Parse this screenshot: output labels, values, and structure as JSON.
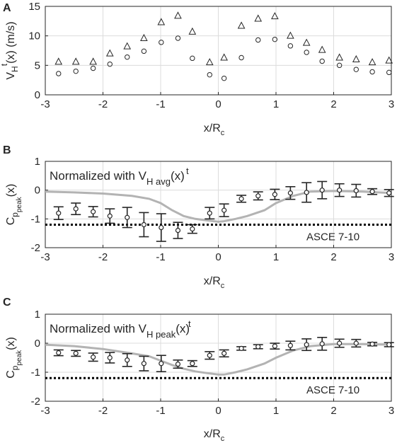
{
  "chart_data": [
    {
      "panel_letter": "A",
      "type": "scatter",
      "xlabel": "x/R",
      "xlabel_sub": "c",
      "ylabel_parts": [
        "V",
        "H",
        "t",
        "(x) (m/s)"
      ],
      "xlim": [
        -3,
        3
      ],
      "ylim": [
        0,
        15
      ],
      "xticks": [
        -3,
        -2,
        -1,
        0,
        1,
        2,
        3
      ],
      "yticks": [
        0,
        5,
        10,
        15
      ],
      "grid": true,
      "series": [
        {
          "marker": "triangle",
          "x": [
            -2.77,
            -2.47,
            -2.17,
            -1.88,
            -1.58,
            -1.29,
            -0.99,
            -0.7,
            -0.45,
            -0.15,
            0.1,
            0.4,
            0.69,
            0.98,
            1.25,
            1.53,
            1.8,
            2.1,
            2.39,
            2.67,
            2.96
          ],
          "y": [
            5.6,
            5.6,
            5.6,
            7.0,
            8.2,
            9.6,
            12.3,
            13.4,
            10.7,
            5.5,
            6.3,
            11.7,
            12.9,
            13.3,
            10.0,
            8.8,
            7.6,
            6.3,
            6.0,
            5.5,
            5.8
          ]
        },
        {
          "marker": "circle",
          "x": [
            -2.77,
            -2.47,
            -2.17,
            -1.88,
            -1.58,
            -1.29,
            -0.99,
            -0.7,
            -0.45,
            -0.15,
            0.1,
            0.4,
            0.69,
            0.98,
            1.25,
            1.53,
            1.8,
            2.1,
            2.39,
            2.67,
            2.96
          ],
          "y": [
            3.6,
            4.0,
            4.5,
            5.2,
            6.4,
            7.4,
            8.9,
            9.6,
            6.2,
            3.4,
            2.8,
            6.3,
            9.3,
            9.4,
            8.3,
            7.2,
            5.7,
            5.0,
            4.3,
            3.9,
            3.8
          ]
        }
      ]
    },
    {
      "panel_letter": "B",
      "type": "scatter",
      "xlabel": "x/R",
      "xlabel_sub": "c",
      "ylabel_parts": [
        "C",
        "p",
        "peak",
        "(x)"
      ],
      "xlim": [
        -3,
        3
      ],
      "ylim": [
        -2,
        1
      ],
      "xticks": [
        -3,
        -2,
        -1,
        0,
        1,
        2,
        3
      ],
      "yticks": [
        -2,
        -1,
        0,
        1
      ],
      "grid": true,
      "annotation_parts": [
        "Normalized with V",
        "H avg",
        "t",
        "(x)"
      ],
      "reference_label": "ASCE 7-10",
      "reference_y": -1.2,
      "points": {
        "x": [
          -2.77,
          -2.47,
          -2.17,
          -1.88,
          -1.58,
          -1.29,
          -0.99,
          -0.7,
          -0.45,
          -0.15,
          0.1,
          0.4,
          0.69,
          0.98,
          1.25,
          1.53,
          1.8,
          2.1,
          2.39,
          2.67,
          2.96
        ],
        "y": [
          -0.8,
          -0.65,
          -0.75,
          -0.9,
          -0.95,
          -1.2,
          -1.3,
          -1.4,
          -1.35,
          -0.8,
          -0.7,
          -0.3,
          -0.2,
          -0.15,
          -0.1,
          -0.08,
          0.0,
          0.0,
          -0.02,
          -0.05,
          -0.1
        ],
        "err": [
          0.22,
          0.2,
          0.18,
          0.25,
          0.35,
          0.42,
          0.48,
          0.28,
          0.15,
          0.2,
          0.22,
          0.12,
          0.14,
          0.18,
          0.22,
          0.34,
          0.3,
          0.22,
          0.22,
          0.1,
          0.12
        ]
      },
      "grey_line": {
        "x": [
          -3,
          -2.5,
          -2,
          -1.5,
          -1.2,
          -1,
          -0.8,
          -0.6,
          -0.4,
          -0.2,
          0,
          0.1,
          0.3,
          0.5,
          0.8,
          1.0,
          1.3,
          1.6,
          2.0,
          2.5,
          3
        ],
        "y": [
          -0.05,
          -0.08,
          -0.12,
          -0.2,
          -0.3,
          -0.45,
          -0.7,
          -0.9,
          -1.0,
          -1.05,
          -1.1,
          -1.08,
          -1.0,
          -0.9,
          -0.7,
          -0.45,
          -0.2,
          -0.05,
          -0.03,
          -0.05,
          -0.1
        ]
      }
    },
    {
      "panel_letter": "C",
      "type": "scatter",
      "xlabel": "x/R",
      "xlabel_sub": "c",
      "ylabel_parts": [
        "C",
        "p",
        "peak",
        "(x)"
      ],
      "xlim": [
        -3,
        3
      ],
      "ylim": [
        -2,
        1
      ],
      "xticks": [
        -3,
        -2,
        -1,
        0,
        1,
        2,
        3
      ],
      "yticks": [
        -2,
        -1,
        0,
        1
      ],
      "grid": true,
      "annotation_parts": [
        "Normalized with V",
        "H peak",
        "t",
        "(x)"
      ],
      "reference_label": "ASCE 7-10",
      "reference_y": -1.2,
      "points": {
        "x": [
          -2.77,
          -2.47,
          -2.17,
          -1.88,
          -1.58,
          -1.29,
          -0.99,
          -0.7,
          -0.45,
          -0.15,
          0.1,
          0.4,
          0.69,
          0.98,
          1.25,
          1.53,
          1.8,
          2.1,
          2.39,
          2.67,
          2.96
        ],
        "y": [
          -0.33,
          -0.35,
          -0.48,
          -0.5,
          -0.58,
          -0.7,
          -0.7,
          -0.72,
          -0.7,
          -0.42,
          -0.35,
          -0.18,
          -0.12,
          -0.1,
          -0.08,
          -0.05,
          -0.02,
          0.0,
          0.0,
          -0.03,
          -0.05
        ],
        "err": [
          0.1,
          0.1,
          0.14,
          0.18,
          0.22,
          0.25,
          0.28,
          0.14,
          0.1,
          0.13,
          0.12,
          0.06,
          0.07,
          0.1,
          0.15,
          0.2,
          0.22,
          0.14,
          0.13,
          0.06,
          0.07
        ]
      },
      "grey_line": {
        "x": [
          -3,
          -2.5,
          -2,
          -1.5,
          -1.2,
          -1,
          -0.8,
          -0.6,
          -0.4,
          -0.2,
          0,
          0.1,
          0.3,
          0.5,
          0.8,
          1.0,
          1.3,
          1.6,
          2.0,
          2.5,
          3
        ],
        "y": [
          -0.05,
          -0.1,
          -0.2,
          -0.35,
          -0.45,
          -0.6,
          -0.75,
          -0.88,
          -0.97,
          -1.03,
          -1.08,
          -1.08,
          -1.0,
          -0.9,
          -0.7,
          -0.5,
          -0.25,
          -0.1,
          -0.03,
          -0.03,
          -0.05
        ]
      }
    }
  ],
  "colors": {
    "marker": "#262626",
    "grid": "#dcdcdc",
    "grey_line": "#b3b3b3",
    "axis": "#262626"
  }
}
